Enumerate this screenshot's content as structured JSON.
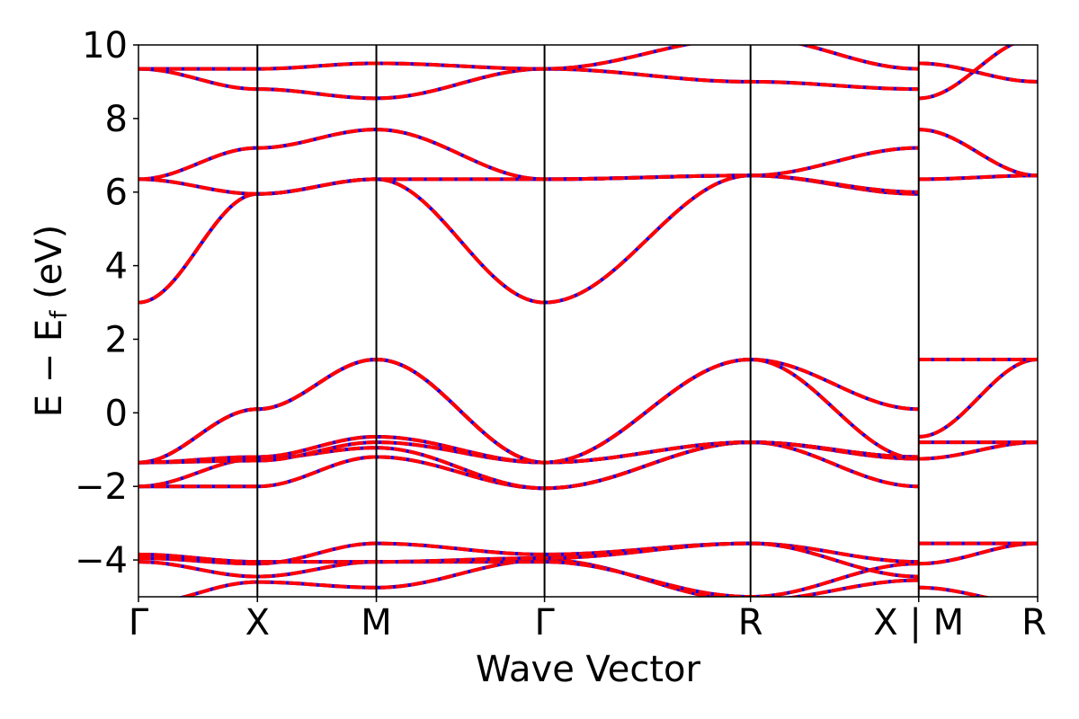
{
  "chart_data": {
    "type": "line",
    "title": "",
    "xlabel": "Wave Vector",
    "ylabel": {
      "main": "E  −  E",
      "subscript": "f",
      "unit": " (eV)"
    },
    "ylim": [
      -5,
      10
    ],
    "yticks": [
      -4,
      -2,
      0,
      2,
      4,
      6,
      8,
      10
    ],
    "ytick_labels": [
      "−4",
      "−2",
      "0",
      "2",
      "4",
      "6",
      "8",
      "10"
    ],
    "xlim": [
      0,
      7.5
    ],
    "xticks": [
      0,
      1,
      2,
      3.414,
      5.146,
      6.56,
      7.56
    ],
    "xtick_labels": [
      "Γ",
      "X",
      "M",
      "Γ",
      "R",
      "X | M",
      "R"
    ],
    "path_segments": [
      {
        "from": "Γ",
        "to": "X",
        "x": [
          0,
          1
        ]
      },
      {
        "from": "X",
        "to": "M",
        "x": [
          1,
          2
        ]
      },
      {
        "from": "M",
        "to": "Γ",
        "x": [
          2,
          3.414
        ]
      },
      {
        "from": "Γ",
        "to": "R",
        "x": [
          3.414,
          5.146
        ]
      },
      {
        "from": "R",
        "to": "X",
        "x": [
          5.146,
          6.56
        ]
      },
      {
        "from": "M",
        "to": "R",
        "x": [
          6.56,
          7.56
        ]
      }
    ],
    "series_styles": [
      {
        "color": "#0000ff",
        "style": "solid"
      },
      {
        "color": "#ff0000",
        "style": "dashed"
      }
    ],
    "bands": [
      {
        "k": [
          0,
          1,
          2,
          3.414,
          5.146,
          6.56
        ],
        "E": [
          -5.2,
          -4.6,
          -4.75,
          -4.0,
          -5.1,
          -4.55
        ]
      },
      {
        "k": [
          0,
          1,
          2,
          3.414,
          5.146,
          6.56
        ],
        "E": [
          -4.05,
          -4.45,
          -4.05,
          -4.05,
          -5.0,
          -4.1
        ]
      },
      {
        "k": [
          0,
          1,
          2,
          3.414,
          5.146,
          6.56
        ],
        "E": [
          -3.95,
          -4.1,
          -3.55,
          -3.85,
          -3.55,
          -4.05
        ]
      },
      {
        "k": [
          0,
          1,
          2,
          3.414,
          5.146,
          6.56
        ],
        "E": [
          -3.85,
          -4.05,
          -4.05,
          -3.95,
          -3.55,
          -4.45
        ]
      },
      {
        "k": [
          0,
          1,
          2,
          3.414,
          5.146,
          6.56
        ],
        "E": [
          -2.0,
          -2.0,
          -1.2,
          -2.05,
          -0.8,
          -2.0
        ]
      },
      {
        "k": [
          0,
          1,
          2,
          3.414,
          5.146,
          6.56
        ],
        "E": [
          -2.0,
          -1.25,
          -0.95,
          -2.05,
          -0.8,
          -1.2
        ]
      },
      {
        "k": [
          0,
          1,
          2,
          3.414,
          5.146,
          6.56
        ],
        "E": [
          -1.35,
          -1.3,
          -0.8,
          -1.35,
          -0.8,
          -1.25
        ]
      },
      {
        "k": [
          0,
          1,
          2,
          3.414,
          5.146,
          6.56
        ],
        "E": [
          -1.35,
          -1.2,
          -0.65,
          -1.35,
          -0.8,
          -1.2
        ]
      },
      {
        "k": [
          0,
          1,
          2,
          3.414,
          5.146,
          6.56
        ],
        "E": [
          -1.35,
          0.1,
          1.45,
          -1.35,
          1.45,
          0.1
        ]
      },
      {
        "k": [
          0,
          1,
          2,
          3.414,
          5.146,
          6.56
        ],
        "E": [
          -1.35,
          0.1,
          1.45,
          -1.35,
          1.45,
          -1.25
        ]
      },
      {
        "k": [
          0,
          1,
          2,
          3.414,
          5.146,
          6.56
        ],
        "E": [
          3.0,
          5.95,
          6.35,
          3.0,
          6.45,
          5.95
        ]
      },
      {
        "k": [
          0,
          1,
          2,
          3.414,
          5.146,
          6.56
        ],
        "E": [
          6.35,
          5.95,
          6.35,
          6.35,
          6.45,
          6.0
        ]
      },
      {
        "k": [
          0,
          1,
          2,
          3.414,
          5.146,
          6.56
        ],
        "E": [
          6.35,
          7.2,
          7.7,
          6.35,
          6.45,
          7.2
        ]
      },
      {
        "k": [
          0,
          1,
          2,
          3.414,
          5.146,
          6.56
        ],
        "E": [
          9.35,
          8.8,
          8.55,
          9.35,
          9.0,
          8.8
        ]
      },
      {
        "k": [
          0,
          1,
          2,
          3.414,
          5.146,
          6.56
        ],
        "E": [
          9.35,
          9.35,
          9.5,
          9.35,
          10.2,
          9.35
        ]
      },
      {
        "k": [
          6.56,
          7.56
        ],
        "E": [
          -4.75,
          -5.2
        ]
      },
      {
        "k": [
          6.56,
          7.56
        ],
        "E": [
          -4.1,
          -3.55
        ]
      },
      {
        "k": [
          6.56,
          7.56
        ],
        "E": [
          -3.55,
          -3.55
        ]
      },
      {
        "k": [
          6.56,
          7.56
        ],
        "E": [
          -1.25,
          -0.8
        ]
      },
      {
        "k": [
          6.56,
          7.56
        ],
        "E": [
          -0.8,
          -0.8
        ]
      },
      {
        "k": [
          6.56,
          7.56
        ],
        "E": [
          -0.65,
          1.45
        ]
      },
      {
        "k": [
          6.56,
          7.56
        ],
        "E": [
          1.45,
          1.45
        ]
      },
      {
        "k": [
          6.56,
          7.56
        ],
        "E": [
          6.35,
          6.45
        ]
      },
      {
        "k": [
          6.56,
          7.56
        ],
        "E": [
          7.7,
          6.45
        ]
      },
      {
        "k": [
          6.56,
          7.56
        ],
        "E": [
          8.55,
          10.2
        ]
      },
      {
        "k": [
          6.56,
          7.56
        ],
        "E": [
          9.5,
          9.0
        ]
      }
    ]
  }
}
